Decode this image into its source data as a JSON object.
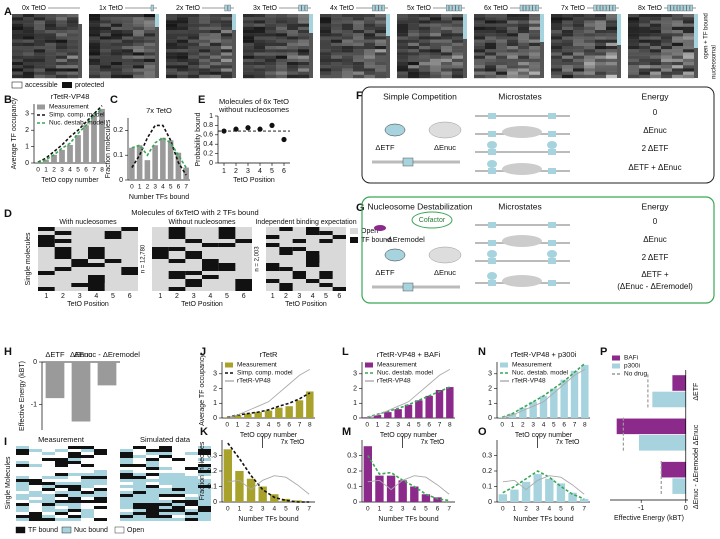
{
  "panel_labels": {
    "A": "A",
    "B": "B",
    "C": "C",
    "D": "D",
    "E": "E",
    "F": "F",
    "G": "G",
    "H": "H",
    "I": "I",
    "J": "J",
    "K": "K",
    "L": "L",
    "M": "M",
    "N": "N",
    "O": "O",
    "P": "P"
  },
  "panel_a": {
    "labels": [
      "0x TetO",
      "1x TetO",
      "2x TetO",
      "3x TetO",
      "4x TetO",
      "5x TetO",
      "6x TetO",
      "7x TetO",
      "8x TetO"
    ],
    "accessible": "accessible",
    "protected": "protected",
    "open": "open + TF bound",
    "nucleosomal": "nucleosomal"
  },
  "panel_d": {
    "title": "Molecules of 6xTetO with 2 TFs bound",
    "subtitles": [
      "With nucleosomes",
      "Without nucleosomes",
      "Independent binding expectation"
    ],
    "n_labels": [
      "n = 12,780",
      "n = 2,003"
    ],
    "legend": [
      "Open",
      "TF bound"
    ],
    "xlabel": "TetO Position",
    "ylabel": "Single molecules",
    "ticks": [
      "1",
      "2",
      "3",
      "4",
      "5",
      "6"
    ]
  },
  "panel_f": {
    "title": "Simple Competition",
    "microstates": "Microstates",
    "energy": "Energy",
    "energies": [
      "0",
      "ΔEnuc",
      "2 ΔETF",
      "ΔETF + ΔEnuc"
    ],
    "arrows": [
      "ΔETF",
      "ΔEnuc"
    ]
  },
  "panel_g": {
    "title": "Nucleosome Destabilization",
    "microstates": "Microstates",
    "energy": "Energy",
    "energies": [
      "0",
      "ΔEnuc",
      "2 ΔETF",
      "ΔETF +",
      "(ΔEnuc - ΔEremodel)"
    ],
    "cofactor": "Cofactor",
    "remodel": "-ΔEremodel",
    "arrows": [
      "ΔETF",
      "ΔEnuc"
    ]
  },
  "panel_i": {
    "titles": [
      "Measurement",
      "Simulated data"
    ],
    "ylabel": "Single Molecules",
    "legend": [
      "TF bound",
      "Nuc bound",
      "Open"
    ]
  },
  "chart_data": [
    {
      "type": "bar",
      "title": "rTetR-VP48",
      "categories": [
        "0",
        "1",
        "2",
        "3",
        "4",
        "5",
        "6",
        "7",
        "8"
      ],
      "xlabel": "TetO copy number",
      "ylabel": "Average TF occupancy",
      "ylim": [
        0,
        3.6
      ],
      "yticks": [
        0,
        1,
        2,
        3
      ],
      "legend": true,
      "series": [
        {
          "name": "Measurement",
          "style": "bar",
          "color": "#9a9a9a",
          "values": [
            0.05,
            0.2,
            0.5,
            0.8,
            1.1,
            1.7,
            2.3,
            2.9,
            3.3
          ]
        },
        {
          "name": "Simp. comp. model",
          "style": "dashed",
          "color": "#111111",
          "values": [
            0.05,
            0.3,
            0.7,
            1.1,
            1.6,
            2.0,
            2.5,
            3.0,
            3.5
          ]
        },
        {
          "name": "Nuc. destab. model",
          "style": "dashed",
          "color": "#3aa655",
          "values": [
            0.02,
            0.2,
            0.5,
            0.9,
            1.2,
            1.8,
            2.3,
            2.9,
            3.3
          ]
        }
      ]
    },
    {
      "type": "bar",
      "title": "7x TetO",
      "categories": [
        "0",
        "1",
        "2",
        "3",
        "4",
        "5",
        "6",
        "7"
      ],
      "xlabel": "Number TFs bound",
      "ylabel": "Fraction molecules",
      "ylim": [
        0,
        0.25
      ],
      "yticks": [
        0,
        0.1,
        0.2
      ],
      "legend": false,
      "series": [
        {
          "style": "bar",
          "color": "#9a9a9a",
          "values": [
            0.13,
            0.14,
            0.08,
            0.14,
            0.17,
            0.16,
            0.11,
            0.05
          ]
        },
        {
          "style": "dashed",
          "color": "#111111",
          "values": [
            0.05,
            0.1,
            0.17,
            0.22,
            0.22,
            0.16,
            0.07,
            0.02
          ]
        },
        {
          "style": "dashed",
          "color": "#3aa655",
          "values": [
            0.13,
            0.14,
            0.1,
            0.15,
            0.17,
            0.15,
            0.1,
            0.05
          ]
        }
      ]
    },
    {
      "type": "scatter",
      "title": "Molecules of 6x TetO",
      "subtitle": "without nucleosomes",
      "x": [
        1,
        2,
        3,
        4,
        5,
        6
      ],
      "xlim": [
        0.5,
        6.5
      ],
      "xticks": [
        1,
        2,
        3,
        4,
        5,
        6
      ],
      "xlabel": "TetO Position",
      "ylabel": "Probability bound",
      "ylim": [
        0,
        1
      ],
      "yticks": [
        0,
        0.2,
        0.4,
        0.6,
        0.8,
        1.0
      ],
      "reference_line": 0.68,
      "series": [
        {
          "style": "dots",
          "color": "#111111",
          "values": [
            0.68,
            0.72,
            0.75,
            0.72,
            0.8,
            0.5
          ]
        }
      ]
    },
    {
      "type": "bar",
      "categories": [
        "ΔETF",
        "ΔEnuc",
        "ΔEnuc - ΔEremodel"
      ],
      "ylabel": "Effective Energy (kBT)",
      "ylim": [
        -1.6,
        0
      ],
      "yticks": [
        0,
        -1
      ],
      "legend": false,
      "series": [
        {
          "style": "bar",
          "color": "#9a9a9a",
          "values": [
            -0.85,
            -1.4,
            -0.55
          ]
        }
      ]
    },
    {
      "type": "bar",
      "title": "rTetR",
      "categories": [
        "0",
        "1",
        "2",
        "3",
        "4",
        "5",
        "6",
        "7",
        "8"
      ],
      "xlabel": "TetO copy number",
      "ylabel": "Average TF occupancy",
      "ylim": [
        0,
        3.8
      ],
      "yticks": [
        0,
        1,
        2,
        3
      ],
      "legend": true,
      "series": [
        {
          "name": "Measurement",
          "style": "bar",
          "color": "#a8a22d",
          "values": [
            0.05,
            0.2,
            0.3,
            0.4,
            0.5,
            0.7,
            0.8,
            1.2,
            1.8
          ]
        },
        {
          "name": "Simp. comp. model",
          "style": "dashed",
          "color": "#111111",
          "values": [
            0.05,
            0.2,
            0.3,
            0.4,
            0.55,
            0.8,
            1.0,
            1.3,
            1.7
          ]
        },
        {
          "name": "rTetR-VP48",
          "style": "line",
          "color": "#aaaaaa",
          "values": [
            0.05,
            0.2,
            0.5,
            0.8,
            1.1,
            1.7,
            2.3,
            2.9,
            3.3
          ]
        }
      ]
    },
    {
      "type": "bar",
      "title": "rTetR-VP48 + BAFi",
      "categories": [
        "0",
        "1",
        "2",
        "3",
        "4",
        "5",
        "6",
        "7",
        "8"
      ],
      "xlabel": "TetO copy number",
      "ylim": [
        0,
        3.8
      ],
      "yticks": [
        0,
        1,
        2,
        3
      ],
      "legend": true,
      "series": [
        {
          "name": "Measurement",
          "style": "bar",
          "color": "#8b2a8b",
          "values": [
            0.05,
            0.2,
            0.4,
            0.6,
            0.9,
            1.2,
            1.5,
            1.9,
            2.1
          ]
        },
        {
          "name": "Nuc. destab. model",
          "style": "dashed",
          "color": "#3aa655",
          "values": [
            0.05,
            0.25,
            0.45,
            0.65,
            0.9,
            1.2,
            1.5,
            1.8,
            2.1
          ]
        },
        {
          "name": "rTetR-VP48",
          "style": "line",
          "color": "#aaaaaa",
          "values": [
            0.05,
            0.2,
            0.5,
            0.8,
            1.1,
            1.7,
            2.3,
            2.9,
            3.3
          ]
        }
      ]
    },
    {
      "type": "bar",
      "title": "rTetR-VP48 + p300i",
      "categories": [
        "0",
        "1",
        "2",
        "3",
        "4",
        "5",
        "6",
        "7",
        "8"
      ],
      "xlabel": "TetO copy number",
      "ylim": [
        0,
        3.8
      ],
      "yticks": [
        0,
        1,
        2,
        3
      ],
      "legend": true,
      "series": [
        {
          "name": "Measurement",
          "style": "bar",
          "color": "#a7d3de",
          "values": [
            0.05,
            0.3,
            0.7,
            1.1,
            1.5,
            2.0,
            2.6,
            3.2,
            3.6
          ]
        },
        {
          "name": "Nuc. destab. model",
          "style": "dashed",
          "color": "#3aa655",
          "values": [
            0.05,
            0.3,
            0.7,
            1.1,
            1.5,
            2.0,
            2.5,
            3.1,
            3.7
          ]
        },
        {
          "name": "rTetR-VP48",
          "style": "line",
          "color": "#aaaaaa",
          "values": [
            0.05,
            0.2,
            0.5,
            0.8,
            1.1,
            1.7,
            2.3,
            2.9,
            3.3
          ]
        }
      ]
    },
    {
      "type": "bar",
      "categories": [
        "0",
        "1",
        "2",
        "3",
        "4",
        "5",
        "6",
        "7"
      ],
      "xlabel": "Number TFs bound",
      "ylabel": "Fraction molecules",
      "ylim": [
        0,
        0.4
      ],
      "yticks": [
        0,
        0.1,
        0.2,
        0.3
      ],
      "legend": false,
      "annotation": "7x TetO",
      "series": [
        {
          "style": "bar",
          "color": "#a8a22d",
          "values": [
            0.34,
            0.2,
            0.15,
            0.1,
            0.05,
            0.02,
            0.01,
            0.0
          ]
        },
        {
          "style": "dashed",
          "color": "#111111",
          "values": [
            0.38,
            0.28,
            0.17,
            0.08,
            0.03,
            0.01,
            0,
            0
          ]
        },
        {
          "style": "line",
          "color": "#aaaaaa",
          "values": [
            0.13,
            0.14,
            0.08,
            0.14,
            0.17,
            0.16,
            0.11,
            0.05
          ]
        }
      ]
    },
    {
      "type": "bar",
      "categories": [
        "0",
        "1",
        "2",
        "3",
        "4",
        "5",
        "6",
        "7"
      ],
      "xlabel": "Number TFs bound",
      "ylim": [
        0,
        0.4
      ],
      "yticks": [
        0,
        0.1,
        0.2,
        0.3
      ],
      "legend": false,
      "annotation": "7x TetO",
      "series": [
        {
          "style": "bar",
          "color": "#8b2a8b",
          "values": [
            0.36,
            0.17,
            0.17,
            0.14,
            0.1,
            0.05,
            0.03,
            0.0
          ]
        },
        {
          "style": "dashed",
          "color": "#3aa655",
          "values": [
            0.3,
            0.18,
            0.19,
            0.14,
            0.1,
            0.05,
            0.02,
            0.01
          ]
        },
        {
          "style": "line",
          "color": "#aaaaaa",
          "values": [
            0.13,
            0.14,
            0.08,
            0.14,
            0.17,
            0.16,
            0.11,
            0.05
          ]
        }
      ]
    },
    {
      "type": "bar",
      "categories": [
        "0",
        "1",
        "2",
        "3",
        "4",
        "5",
        "6",
        "7"
      ],
      "xlabel": "Number TFs bound",
      "ylim": [
        0,
        0.4
      ],
      "yticks": [
        0,
        0.1,
        0.2,
        0.3
      ],
      "legend": false,
      "annotation": "7x TetO",
      "series": [
        {
          "style": "bar",
          "color": "#a7d3de",
          "values": [
            0.05,
            0.08,
            0.13,
            0.18,
            0.15,
            0.12,
            0.06,
            0.02
          ]
        },
        {
          "style": "dashed",
          "color": "#3aa655",
          "values": [
            0.06,
            0.1,
            0.15,
            0.2,
            0.16,
            0.1,
            0.05,
            0.02
          ]
        },
        {
          "style": "line",
          "color": "#aaaaaa",
          "values": [
            0.13,
            0.14,
            0.08,
            0.14,
            0.17,
            0.16,
            0.11,
            0.05
          ]
        }
      ]
    },
    {
      "type": "barh",
      "categories": [
        "ΔETF",
        "ΔEnuc",
        "ΔEnuc - ΔEremodel"
      ],
      "xlabel": "Effective Energy (kBT)",
      "xlim": [
        -1.7,
        0.05
      ],
      "xticks": [
        -1,
        0
      ],
      "legend": true,
      "series": [
        {
          "name": "BAFi",
          "style": "bar",
          "color": "#8b2a8b",
          "values": [
            -0.3,
            -1.55,
            -0.55
          ]
        },
        {
          "name": "p300i",
          "style": "bar",
          "color": "#a7d3de",
          "values": [
            -0.75,
            -1.05,
            -0.3
          ]
        },
        {
          "name": "No drug",
          "style": "dashed",
          "color": "#999999",
          "values": [
            -0.85,
            -1.4,
            -0.55
          ]
        }
      ]
    }
  ]
}
